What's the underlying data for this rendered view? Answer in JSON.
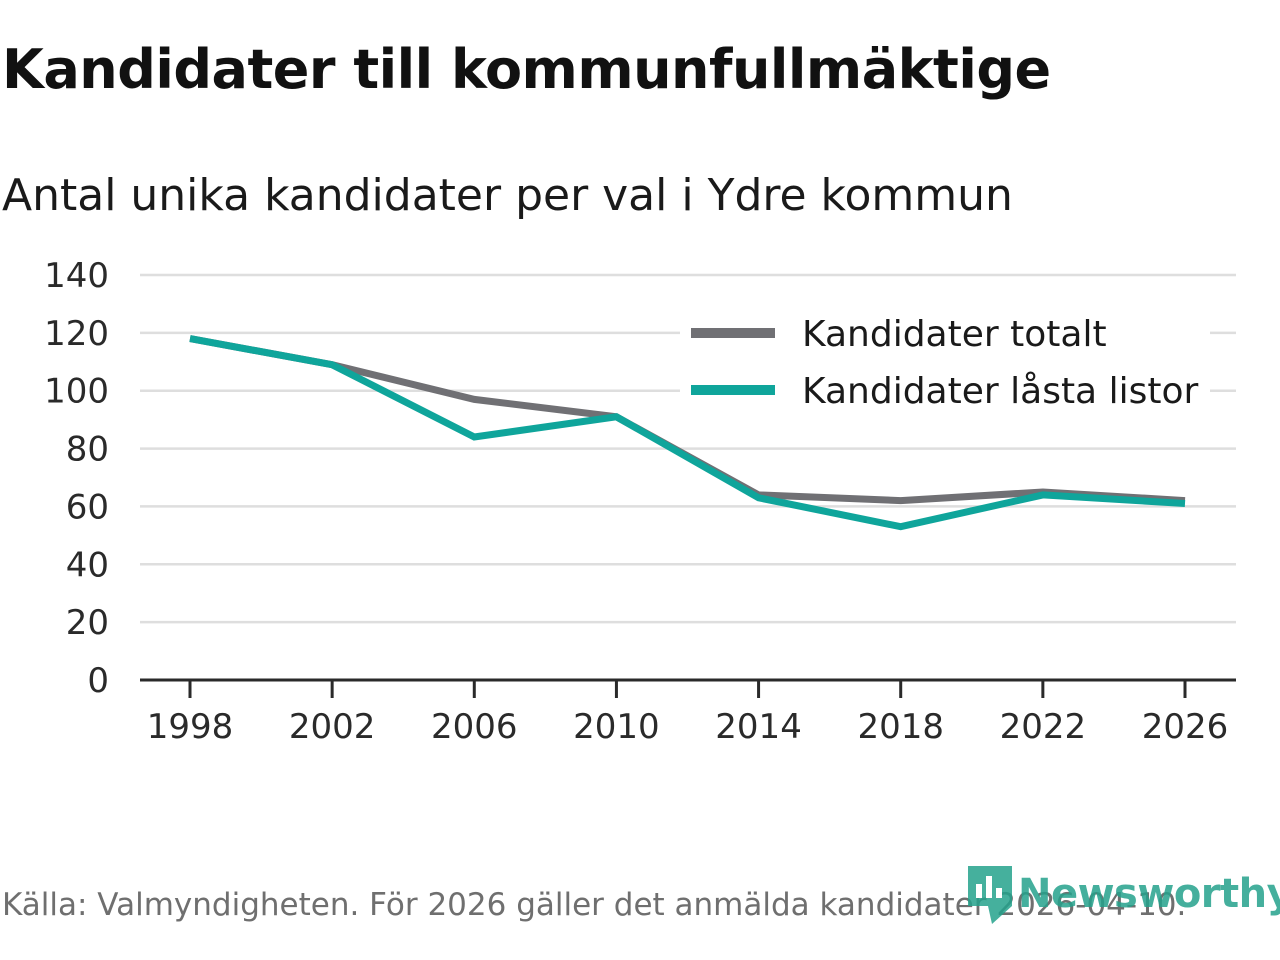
{
  "header": {
    "title": "Kandidater till kommunfullmäktige",
    "subtitle": "Antal unika kandidater per val i Ydre kommun"
  },
  "footer": {
    "source": "Källa: Valmyndigheten. För 2026 gäller det anmälda kandidater 2026-04-10.",
    "brand": "Newsworthy"
  },
  "colors": {
    "totalt": "#707074",
    "lasta": "#0fa59b",
    "grid": "#dedede",
    "axis": "#2a2a2a",
    "brand": "#25a28c"
  },
  "chart_data": {
    "type": "line",
    "title": "Kandidater till kommunfullmäktige",
    "subtitle": "Antal unika kandidater per val i Ydre kommun",
    "xlabel": "",
    "ylabel": "",
    "x": [
      1998,
      2002,
      2006,
      2010,
      2014,
      2018,
      2022,
      2026
    ],
    "ylim": [
      0,
      140
    ],
    "yticks": [
      0,
      20,
      40,
      60,
      80,
      100,
      120,
      140
    ],
    "grid": true,
    "legend_position": "top-right",
    "series": [
      {
        "name": "Kandidater totalt",
        "color": "#707074",
        "values": [
          118,
          109,
          97,
          91,
          64,
          62,
          65,
          62
        ]
      },
      {
        "name": "Kandidater låsta listor",
        "color": "#0fa59b",
        "values": [
          118,
          109,
          84,
          91,
          63,
          53,
          64,
          61
        ]
      }
    ]
  }
}
